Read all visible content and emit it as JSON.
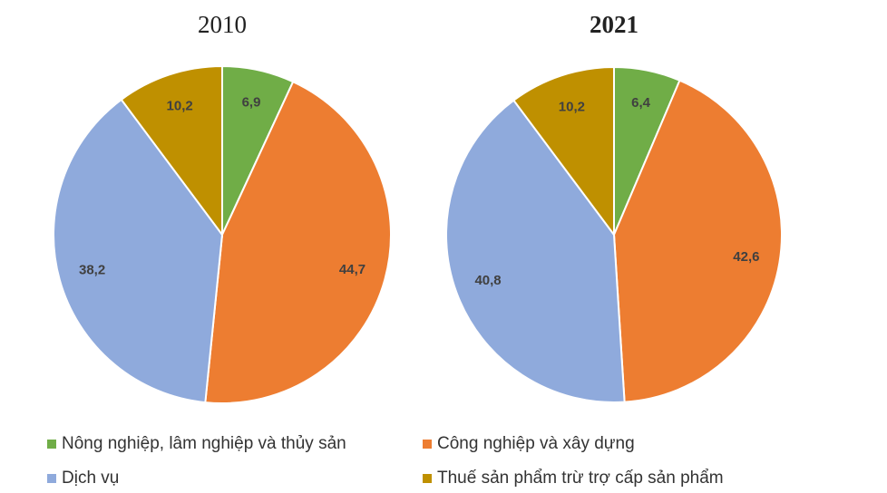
{
  "chart_data": [
    {
      "type": "pie",
      "title": "2010",
      "categories": [
        "Nông nghiệp, lâm nghiệp và thủy sản",
        "Công nghiệp và xây dựng",
        "Dịch vụ",
        "Thuế sản phẩm trừ trợ cấp sản phẩm"
      ],
      "values": [
        6.9,
        44.7,
        38.2,
        10.2
      ],
      "value_labels": [
        "6,9",
        "44,7",
        "38,2",
        "10,2"
      ],
      "colors": [
        "#70ad47",
        "#ed7d31",
        "#8faadc",
        "#bf9000"
      ]
    },
    {
      "type": "pie",
      "title": "2021",
      "values": [
        6.4,
        42.6,
        40.8,
        10.2
      ],
      "value_labels": [
        "6,4",
        "42,6",
        "40,8",
        "10,2"
      ],
      "colors": [
        "#70ad47",
        "#ed7d31",
        "#8faadc",
        "#bf9000"
      ]
    }
  ]
}
